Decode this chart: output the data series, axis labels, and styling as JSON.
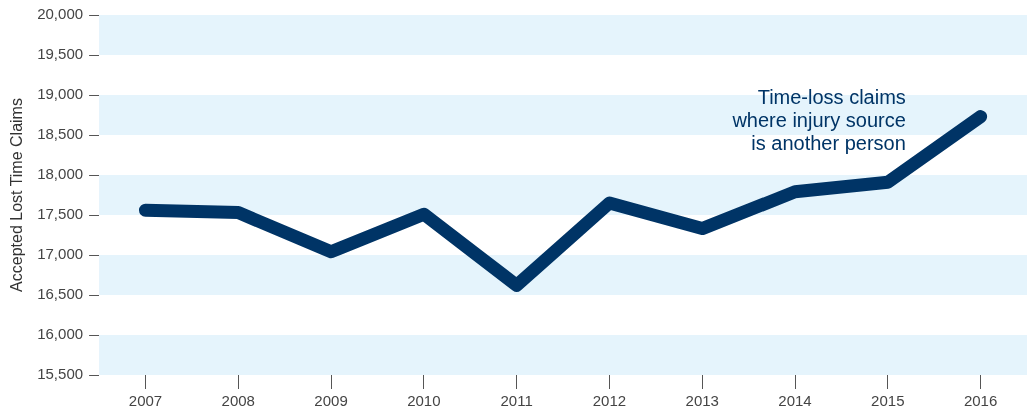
{
  "chart_data": {
    "type": "line",
    "ylabel": "Accepted Lost Time Claims",
    "categories": [
      "2007",
      "2008",
      "2009",
      "2010",
      "2011",
      "2012",
      "2013",
      "2014",
      "2015",
      "2016"
    ],
    "series": [
      {
        "name": "Time-loss claims where injury source is another person",
        "color": "#003466",
        "values": [
          17560,
          17530,
          17040,
          17510,
          16620,
          17650,
          17330,
          17790,
          17910,
          18730
        ]
      }
    ],
    "ylim": [
      15500,
      20000
    ],
    "yticks": [
      {
        "value": 15500,
        "label": "15,500"
      },
      {
        "value": 16000,
        "label": "16,000"
      },
      {
        "value": 16500,
        "label": "16,500"
      },
      {
        "value": 17000,
        "label": "17,000"
      },
      {
        "value": 17500,
        "label": "17,500"
      },
      {
        "value": 18000,
        "label": "18,000"
      },
      {
        "value": 18500,
        "label": "18,500"
      },
      {
        "value": 19000,
        "label": "19,000"
      },
      {
        "value": 19500,
        "label": "19,500"
      },
      {
        "value": 20000,
        "label": "20,000"
      }
    ],
    "bands": [
      {
        "axis": "y",
        "from": 15500,
        "to": 16000,
        "color": "#e5f4fc"
      },
      {
        "axis": "y",
        "from": 16500,
        "to": 17000,
        "color": "#e5f4fc"
      },
      {
        "axis": "y",
        "from": 17500,
        "to": 18000,
        "color": "#e5f4fc"
      },
      {
        "axis": "y",
        "from": 18500,
        "to": 19000,
        "color": "#e5f4fc"
      },
      {
        "axis": "y",
        "from": 19500,
        "to": 20000,
        "color": "#e5f4fc"
      }
    ],
    "grid": false,
    "legend": false,
    "marker": "none",
    "line_style": "solid"
  }
}
